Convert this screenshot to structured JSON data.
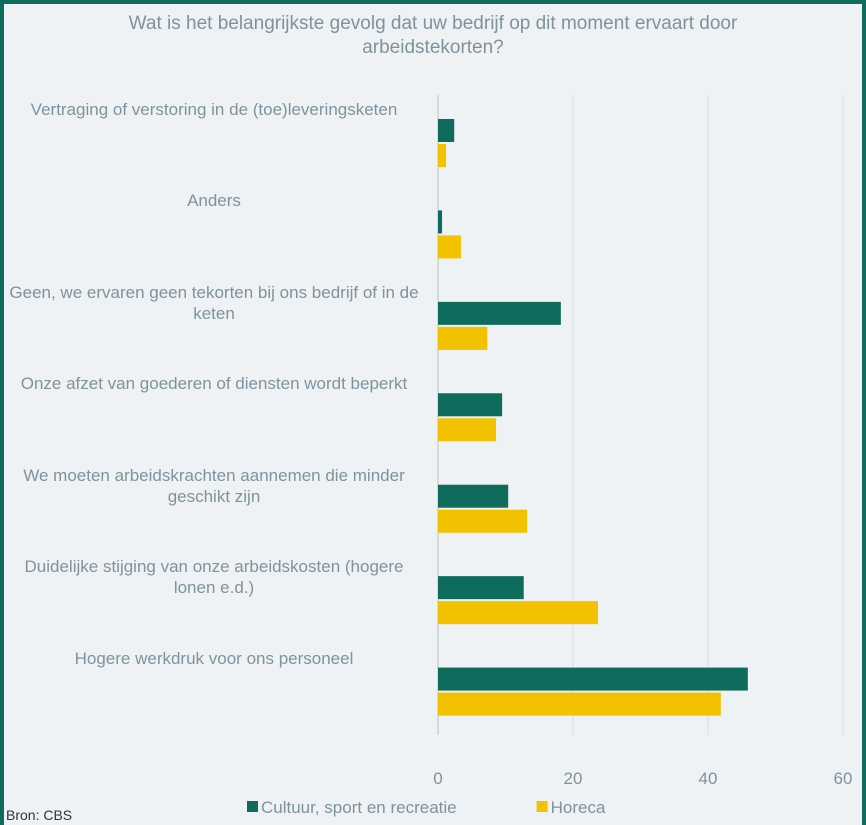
{
  "chart_data": {
    "type": "hbar",
    "title": "Wat is het belangrijkste gevolg dat uw bedrijf op dit moment ervaart door arbeidstekorten?",
    "categories": [
      "Vertraging of verstoring in de (toe)leveringsketen",
      "Anders",
      "Geen, we ervaren geen tekorten bij ons bedrijf of in de keten",
      "Onze afzet van goederen of diensten wordt beperkt",
      "We moeten arbeidskrachten aannemen die minder geschikt zijn",
      "Duidelijke stijging van onze arbeidskosten (hogere lonen e.d.)",
      "Hogere werkdruk voor ons personeel"
    ],
    "series": [
      {
        "name": "Cultuur, sport en recreatie",
        "color": "#0f6b5b",
        "values": [
          2.4,
          0.6,
          18.2,
          9.5,
          10.4,
          12.7,
          45.9
        ]
      },
      {
        "name": "Horeca",
        "color": "#f2c100",
        "values": [
          1.2,
          3.4,
          7.3,
          8.6,
          13.2,
          23.7,
          41.9
        ]
      }
    ],
    "xlim": [
      0,
      60
    ],
    "xticks": [
      0,
      20,
      40,
      60
    ],
    "grid": true,
    "legend": "bottom",
    "source": "Bron: CBS"
  }
}
